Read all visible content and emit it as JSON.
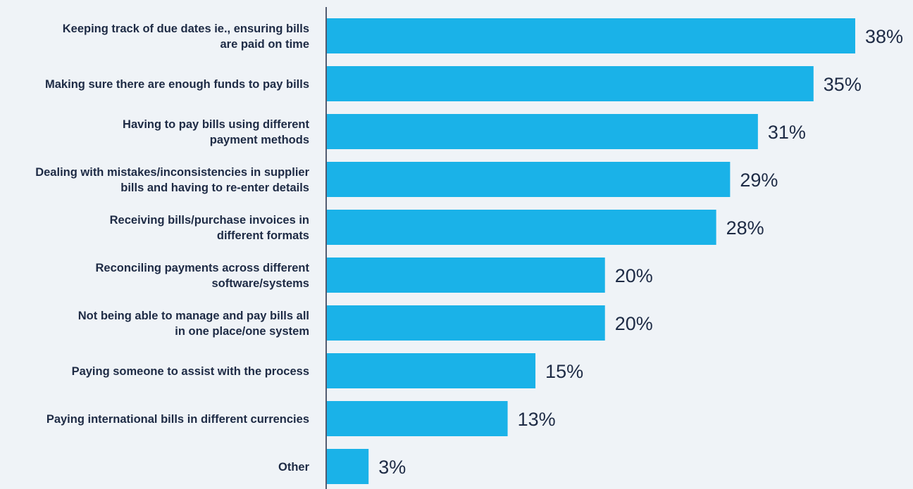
{
  "colors": {
    "background": "#eff3f7",
    "bar": "#1ab2e8",
    "text": "#1e2b45",
    "axis": "#1e2b45"
  },
  "chart_data": {
    "type": "bar",
    "orientation": "horizontal",
    "title": "",
    "xlabel": "",
    "ylabel": "",
    "grid": false,
    "legend": "none",
    "xlim": [
      0,
      38
    ],
    "categories": [
      [
        "Keeping track of due dates ie., ensuring bills",
        "are paid on time"
      ],
      [
        "Making sure there are enough funds to pay bills"
      ],
      [
        "Having to pay bills using different",
        "payment methods"
      ],
      [
        "Dealing with mistakes/inconsistencies in supplier",
        "bills and having to re-enter details"
      ],
      [
        "Receiving bills/purchase invoices in",
        "different formats"
      ],
      [
        "Reconciling payments across different",
        "software/systems"
      ],
      [
        "Not being able to manage and pay bills all",
        "in one place/one system"
      ],
      [
        "Paying someone to assist with the process"
      ],
      [
        "Paying international bills in different currencies"
      ],
      [
        "Other"
      ]
    ],
    "values": [
      38,
      35,
      31,
      29,
      28,
      20,
      20,
      15,
      13,
      3
    ],
    "value_labels": [
      "38%",
      "35%",
      "31%",
      "29%",
      "28%",
      "20%",
      "20%",
      "15%",
      "13%",
      "3%"
    ]
  }
}
